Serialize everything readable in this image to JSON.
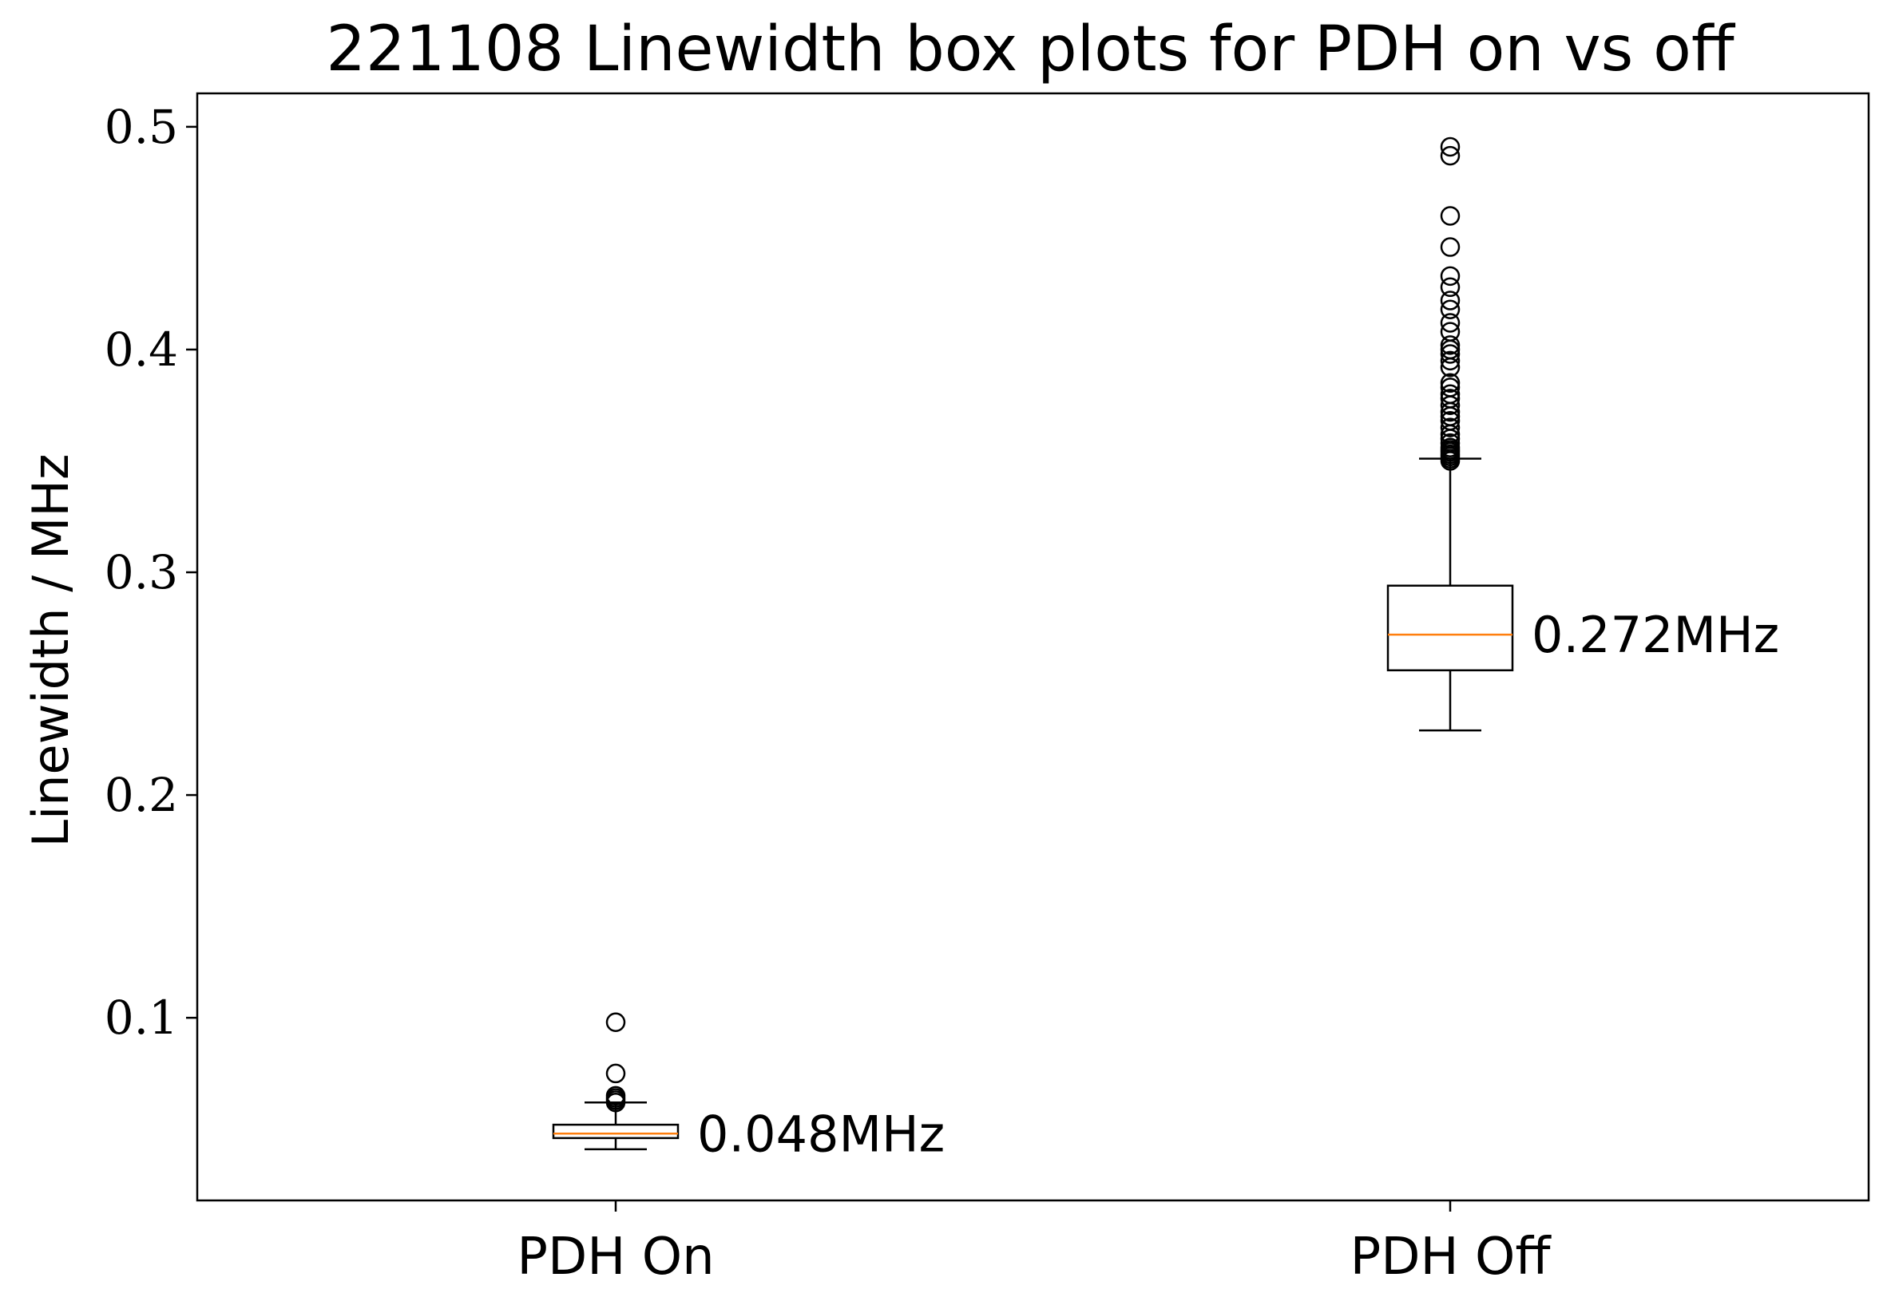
{
  "chart_data": {
    "type": "box",
    "title": "221108 Linewidth box plots for PDH on vs off",
    "xlabel": "",
    "ylabel": "Linewidth / MHz",
    "ylim": [
      0.018,
      0.515
    ],
    "yticks": [
      {
        "value": 0.1,
        "label": "0.1"
      },
      {
        "value": 0.2,
        "label": "0.2"
      },
      {
        "value": 0.3,
        "label": "0.3"
      },
      {
        "value": 0.4,
        "label": "0.4"
      },
      {
        "value": 0.5,
        "label": "0.5"
      }
    ],
    "categories": [
      "PDH On",
      "PDH Off"
    ],
    "grid": false,
    "legend": "none",
    "colors": {
      "box": "#000000",
      "median": "#ff7f0e"
    },
    "boxes": [
      {
        "category": "PDH On",
        "whisker_low": 0.041,
        "q1": 0.046,
        "median": 0.048,
        "q3": 0.052,
        "whisker_high": 0.062,
        "outliers": [
          0.062,
          0.063,
          0.064,
          0.065,
          0.075,
          0.098
        ],
        "annotation": "0.048MHz"
      },
      {
        "category": "PDH Off",
        "whisker_low": 0.229,
        "q1": 0.256,
        "median": 0.272,
        "q3": 0.294,
        "whisker_high": 0.351,
        "outliers": [
          0.35,
          0.351,
          0.352,
          0.353,
          0.354,
          0.355,
          0.356,
          0.358,
          0.36,
          0.362,
          0.365,
          0.368,
          0.37,
          0.372,
          0.375,
          0.378,
          0.38,
          0.383,
          0.385,
          0.392,
          0.395,
          0.398,
          0.4,
          0.402,
          0.408,
          0.412,
          0.418,
          0.422,
          0.428,
          0.433,
          0.446,
          0.46,
          0.487,
          0.491
        ],
        "annotation": "0.272MHz"
      }
    ]
  }
}
